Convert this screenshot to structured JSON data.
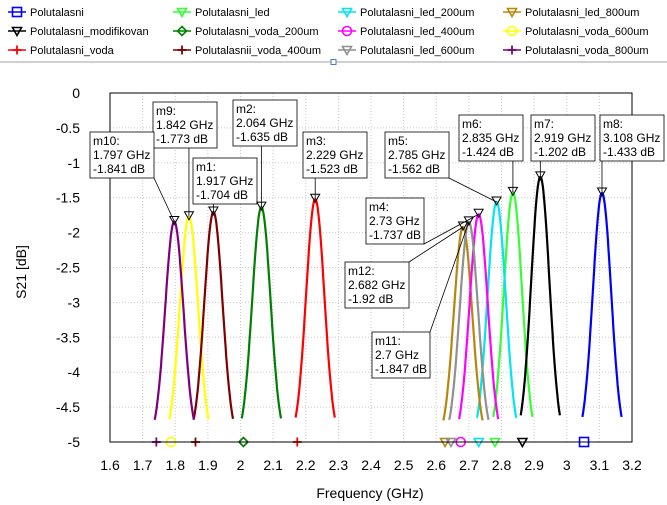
{
  "chart_data": {
    "type": "line",
    "xlabel": "Frequency (GHz)",
    "ylabel": "S21 [dB]",
    "xlim": [
      1.6,
      3.2
    ],
    "ylim": [
      -5,
      0
    ],
    "x_ticks": [
      "1.6",
      "1.7",
      "1.8",
      "1.9",
      "2",
      "2.1",
      "2.2",
      "2.3",
      "2.4",
      "2.5",
      "2.6",
      "2.7",
      "2.8",
      "2.9",
      "3",
      "3.1",
      "3.2"
    ],
    "y_ticks": [
      "0",
      "-0.5",
      "-1",
      "-1.5",
      "-2",
      "-2.5",
      "-3",
      "-3.5",
      "-4",
      "-4.5",
      "-5"
    ],
    "grid": true,
    "legend_placement": "top",
    "series": [
      {
        "name": "Polutalasni",
        "color": "#0000ff",
        "symbol": "square",
        "center": 3.108,
        "peak": -1.433,
        "half_width": 0.06
      },
      {
        "name": "Polutalasni_led",
        "color": "#33ff33",
        "symbol": "tri-down",
        "center": 2.835,
        "peak": -1.424,
        "half_width": 0.06
      },
      {
        "name": "Polutalasni_led_200um",
        "color": "#00e5ee",
        "symbol": "tri-down",
        "center": 2.785,
        "peak": -1.562,
        "half_width": 0.06
      },
      {
        "name": "Polutalasni_led_800um",
        "color": "#b8860b",
        "symbol": "tri-down",
        "center": 2.682,
        "peak": -1.92,
        "half_width": 0.06
      },
      {
        "name": "Polutalasni_modifikovan",
        "color": "#000000",
        "symbol": "tri-down",
        "center": 2.919,
        "peak": -1.202,
        "half_width": 0.06
      },
      {
        "name": "Polutalasni_voda_200um",
        "color": "#007f00",
        "symbol": "diamond",
        "center": 2.064,
        "peak": -1.635,
        "half_width": 0.06
      },
      {
        "name": "Polutalasni_led_400um",
        "color": "#ff00ff",
        "symbol": "circle",
        "center": 2.73,
        "peak": -1.737,
        "half_width": 0.06
      },
      {
        "name": "Polutalasni_voda_600um",
        "color": "#ffff00",
        "symbol": "circle",
        "center": 1.842,
        "peak": -1.773,
        "half_width": 0.06
      },
      {
        "name": "Polutalasni_voda",
        "color": "#ff0000",
        "symbol": "plus",
        "center": 2.229,
        "peak": -1.523,
        "half_width": 0.06
      },
      {
        "name": "Polutalasnii_voda_400um",
        "color": "#7f0000",
        "symbol": "plus",
        "center": 1.917,
        "peak": -1.704,
        "half_width": 0.06
      },
      {
        "name": "Polutalasni_led_600um",
        "color": "#909090",
        "symbol": "tri-down",
        "center": 2.7,
        "peak": -1.847,
        "half_width": 0.06
      },
      {
        "name": "Polutalasni_voda_800um",
        "color": "#7f007f",
        "symbol": "plus",
        "center": 1.797,
        "peak": -1.841,
        "half_width": 0.06
      }
    ],
    "markers": [
      {
        "id": "m1",
        "freq": "1.917 GHz",
        "db": "-1.704 dB",
        "x": 1.917,
        "y": -1.704
      },
      {
        "id": "m2",
        "freq": "2.064 GHz",
        "db": "-1.635 dB",
        "x": 2.064,
        "y": -1.635
      },
      {
        "id": "m3",
        "freq": "2.229 GHz",
        "db": "-1.523 dB",
        "x": 2.229,
        "y": -1.523
      },
      {
        "id": "m4",
        "freq": "2.73 GHz",
        "db": "-1.737 dB",
        "x": 2.73,
        "y": -1.737
      },
      {
        "id": "m5",
        "freq": "2.785 GHz",
        "db": "-1.562 dB",
        "x": 2.785,
        "y": -1.562
      },
      {
        "id": "m6",
        "freq": "2.835 GHz",
        "db": "-1.424 dB",
        "x": 2.835,
        "y": -1.424
      },
      {
        "id": "m7",
        "freq": "2.919 GHz",
        "db": "-1.202 dB",
        "x": 2.919,
        "y": -1.202
      },
      {
        "id": "m8",
        "freq": "3.108 GHz",
        "db": "-1.433 dB",
        "x": 3.108,
        "y": -1.433
      },
      {
        "id": "m9",
        "freq": "1.842 GHz",
        "db": "-1.773 dB",
        "x": 1.842,
        "y": -1.773
      },
      {
        "id": "m10",
        "freq": "1.797 GHz",
        "db": "-1.841 dB",
        "x": 1.797,
        "y": -1.841
      },
      {
        "id": "m11",
        "freq": "2.7 GHz",
        "db": "-1.847 dB",
        "x": 2.7,
        "y": -1.847
      },
      {
        "id": "m12",
        "freq": "2.682 GHz",
        "db": "-1.92 dB",
        "x": 2.682,
        "y": -1.92
      }
    ]
  }
}
